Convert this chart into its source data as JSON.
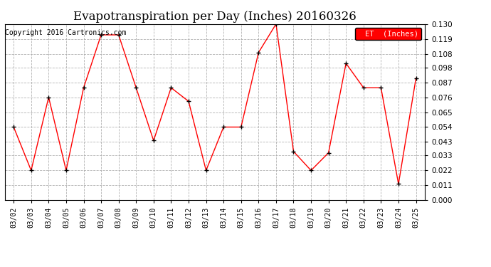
{
  "title": "Evapotranspiration per Day (Inches) 20160326",
  "copyright_text": "Copyright 2016 Cartronics.com",
  "legend_label": "ET  (Inches)",
  "dates": [
    "03/02",
    "03/03",
    "03/04",
    "03/05",
    "03/06",
    "03/07",
    "03/08",
    "03/09",
    "03/10",
    "03/11",
    "03/12",
    "03/13",
    "03/14",
    "03/15",
    "03/16",
    "03/17",
    "03/18",
    "03/19",
    "03/20",
    "03/21",
    "03/22",
    "03/23",
    "03/24",
    "03/25"
  ],
  "values": [
    0.054,
    0.022,
    0.076,
    0.022,
    0.083,
    0.122,
    0.122,
    0.083,
    0.044,
    0.083,
    0.073,
    0.022,
    0.054,
    0.054,
    0.109,
    0.13,
    0.036,
    0.022,
    0.035,
    0.101,
    0.083,
    0.083,
    0.012,
    0.09
  ],
  "line_color": "red",
  "marker_color": "black",
  "marker_style": "+",
  "background_color": "#ffffff",
  "grid_color": "#aaaaaa",
  "ylim": [
    0.0,
    0.13
  ],
  "yticks": [
    0.0,
    0.011,
    0.022,
    0.033,
    0.043,
    0.054,
    0.065,
    0.076,
    0.087,
    0.098,
    0.108,
    0.119,
    0.13
  ],
  "title_fontsize": 12,
  "copyright_fontsize": 7,
  "legend_bg": "#ff0000",
  "legend_text_color": "#ffffff"
}
